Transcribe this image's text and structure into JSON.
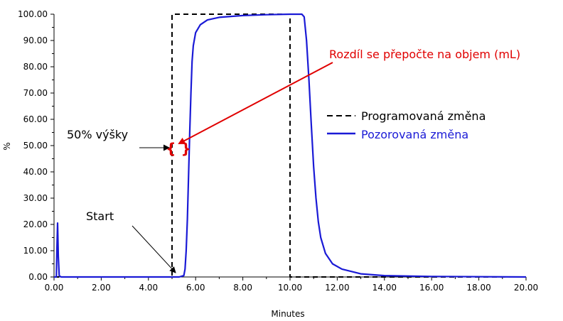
{
  "chart_data": {
    "type": "line",
    "xlabel": "Minutes",
    "ylabel": "%",
    "xlim": [
      0,
      20
    ],
    "ylim": [
      0,
      100
    ],
    "x_ticks": [
      "0.00",
      "2.00",
      "4.00",
      "6.00",
      "8.00",
      "10.00",
      "12.00",
      "14.00",
      "16.00",
      "18.00",
      "20.00"
    ],
    "y_ticks": [
      "0.00",
      "10.00",
      "20.00",
      "30.00",
      "40.00",
      "50.00",
      "60.00",
      "70.00",
      "80.00",
      "90.00",
      "100.00"
    ],
    "grid": false,
    "legend_position": "right",
    "series": [
      {
        "name": "Programovaná změna",
        "color": "#000000",
        "style": "dashed",
        "points": [
          [
            0,
            0
          ],
          [
            5.0,
            0
          ],
          [
            5.0,
            100
          ],
          [
            10.0,
            100
          ],
          [
            10.0,
            0
          ],
          [
            20,
            0
          ]
        ]
      },
      {
        "name": "Pozorovaná změna",
        "color": "#1a1ad6",
        "style": "solid",
        "points": [
          [
            0,
            0
          ],
          [
            0.1,
            0
          ],
          [
            0.12,
            10
          ],
          [
            0.15,
            20.5
          ],
          [
            0.18,
            8
          ],
          [
            0.22,
            0.5
          ],
          [
            0.3,
            0
          ],
          [
            5.3,
            0
          ],
          [
            5.5,
            0.5
          ],
          [
            5.55,
            3
          ],
          [
            5.6,
            10
          ],
          [
            5.65,
            22
          ],
          [
            5.7,
            38
          ],
          [
            5.75,
            55
          ],
          [
            5.8,
            70
          ],
          [
            5.85,
            82
          ],
          [
            5.9,
            88
          ],
          [
            6.0,
            93
          ],
          [
            6.2,
            96
          ],
          [
            6.5,
            97.8
          ],
          [
            7.0,
            98.8
          ],
          [
            8.0,
            99.5
          ],
          [
            9.0,
            99.8
          ],
          [
            10.0,
            100
          ],
          [
            10.5,
            100
          ],
          [
            10.6,
            99
          ],
          [
            10.7,
            90
          ],
          [
            10.8,
            75
          ],
          [
            10.9,
            58
          ],
          [
            11.0,
            42
          ],
          [
            11.1,
            30
          ],
          [
            11.2,
            21
          ],
          [
            11.3,
            15
          ],
          [
            11.5,
            9
          ],
          [
            11.8,
            5
          ],
          [
            12.2,
            3
          ],
          [
            13.0,
            1.2
          ],
          [
            14.0,
            0.5
          ],
          [
            16.0,
            0.2
          ],
          [
            20,
            0
          ]
        ]
      }
    ],
    "annotations": {
      "volume_note": "Rozdíl se přepočte na objem (mL)",
      "half_height": "50% výšky",
      "start": "Start",
      "bracket": "{ }"
    }
  }
}
